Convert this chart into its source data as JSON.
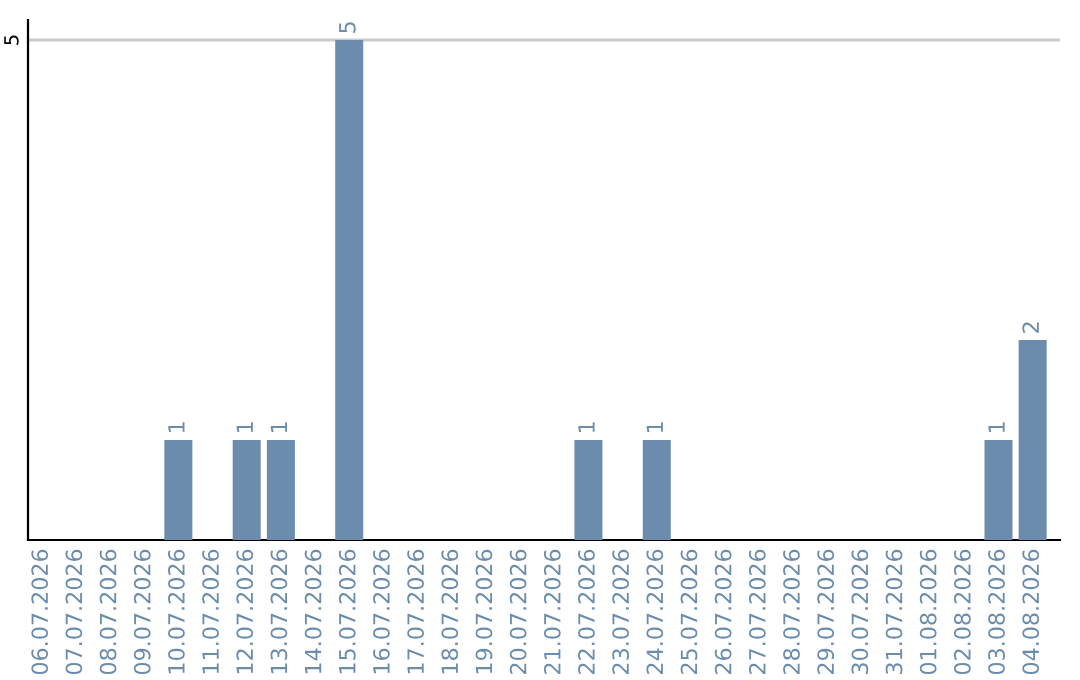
{
  "chart_data": {
    "type": "bar",
    "categories": [
      "06.07.2026",
      "07.07.2026",
      "08.07.2026",
      "09.07.2026",
      "10.07.2026",
      "11.07.2026",
      "12.07.2026",
      "13.07.2026",
      "14.07.2026",
      "15.07.2026",
      "16.07.2026",
      "17.07.2026",
      "18.07.2026",
      "19.07.2026",
      "20.07.2026",
      "21.07.2026",
      "22.07.2026",
      "23.07.2026",
      "24.07.2026",
      "25.07.2026",
      "26.07.2026",
      "27.07.2026",
      "28.07.2026",
      "29.07.2026",
      "30.07.2026",
      "31.07.2026",
      "01.08.2026",
      "02.08.2026",
      "03.08.2026",
      "04.08.2026"
    ],
    "values": [
      0,
      0,
      0,
      0,
      1,
      0,
      1,
      1,
      0,
      5,
      0,
      0,
      0,
      0,
      0,
      0,
      1,
      0,
      1,
      0,
      0,
      0,
      0,
      0,
      0,
      0,
      0,
      0,
      1,
      2
    ],
    "value_labels": [
      null,
      null,
      null,
      null,
      "1",
      null,
      "1",
      "1",
      null,
      "5",
      null,
      null,
      null,
      null,
      null,
      null,
      "1",
      null,
      "1",
      null,
      null,
      null,
      null,
      null,
      null,
      null,
      null,
      null,
      "1",
      "2"
    ],
    "color": "#6b8cac",
    "ylim": [
      0,
      5.2
    ],
    "yticks": [
      5
    ],
    "grid": "y"
  }
}
